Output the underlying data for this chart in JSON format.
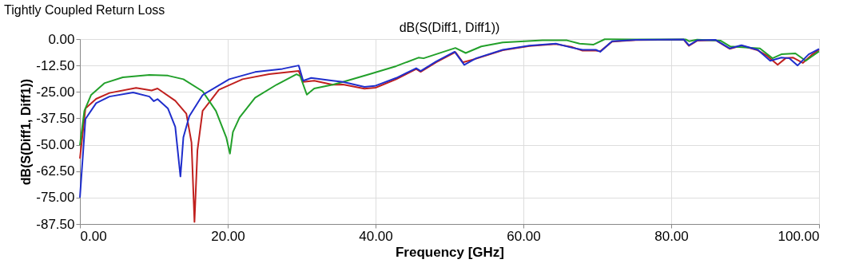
{
  "chart_data": {
    "type": "line",
    "title": "Tightly Coupled Return Loss",
    "subtitle": "dB(S(Diff1, Diff1))",
    "xlabel": "Frequency [GHz]",
    "ylabel": "dB(S(Diff1, Diff1))",
    "xlim": [
      0,
      100
    ],
    "ylim": [
      -87.5,
      0
    ],
    "xticks": [
      {
        "value": 0,
        "label": "0.00"
      },
      {
        "value": 20,
        "label": "20.00"
      },
      {
        "value": 40,
        "label": "40.00"
      },
      {
        "value": 60,
        "label": "60.00"
      },
      {
        "value": 80,
        "label": "80.00"
      },
      {
        "value": 100,
        "label": "100.00"
      }
    ],
    "yticks": [
      {
        "value": 0,
        "label": "0.00"
      },
      {
        "value": -12.5,
        "label": "-12.50"
      },
      {
        "value": -25,
        "label": "-25.00"
      },
      {
        "value": -37.5,
        "label": "-37.50"
      },
      {
        "value": -50,
        "label": "-50.00"
      },
      {
        "value": -62.5,
        "label": "-62.50"
      },
      {
        "value": -75,
        "label": "-75.00"
      },
      {
        "value": -87.5,
        "label": "-87.50"
      }
    ],
    "grid": true,
    "legend": false,
    "marker": "none",
    "line_style": "solid",
    "series": [
      {
        "color": "#c0201e",
        "x": [
          0,
          0.75,
          2.2,
          4,
          7.6,
          9.7,
          10.5,
          12.9,
          14.4,
          15.1,
          15.5,
          15.9,
          16.6,
          18.8,
          22,
          25.6,
          29.6,
          30.2,
          31.7,
          34.2,
          35.6,
          38.5,
          40,
          42.8,
          45.5,
          46.1,
          48.2,
          50.8,
          51.8,
          53.6,
          57.2,
          60.8,
          64.4,
          66.6,
          68,
          69.8,
          70.4,
          72,
          75.2,
          81.7,
          82.4,
          83.5,
          86,
          87.9,
          89.5,
          91.7,
          93,
          94.4,
          95.5,
          96.5,
          97.8,
          99,
          100
        ],
        "values": [
          -56.5,
          -32.8,
          -28.3,
          -25.5,
          -23.1,
          -24.3,
          -23.4,
          -29.2,
          -35.3,
          -49,
          -86.5,
          -52.7,
          -34,
          -24,
          -19,
          -16.6,
          -15.1,
          -20.3,
          -19.7,
          -21.6,
          -21.5,
          -23.5,
          -23,
          -19,
          -14.2,
          -15.5,
          -11,
          -6.2,
          -11,
          -9.3,
          -5.3,
          -3.3,
          -2.4,
          -3.8,
          -5.5,
          -5.5,
          -5.8,
          -1.2,
          -0.5,
          -0.3,
          -3.2,
          -0.8,
          -0.5,
          -4.6,
          -3.1,
          -5.3,
          -8,
          -12.2,
          -9,
          -8.8,
          -11.3,
          -7.5,
          -5
        ]
      },
      {
        "color": "#22a02a",
        "x": [
          0,
          0.6,
          1.5,
          3.3,
          5.8,
          9.4,
          11.9,
          14,
          16.6,
          18.4,
          19.8,
          20.3,
          20.7,
          21.6,
          23.7,
          26.6,
          29.3,
          29.8,
          30.7,
          31.7,
          34.2,
          35.6,
          39.2,
          42.8,
          45.8,
          46.5,
          50.8,
          52.2,
          54.3,
          57.2,
          62.6,
          65.9,
          67.6,
          69.5,
          71,
          75,
          82,
          82.4,
          83.5,
          86.7,
          88,
          92,
          93.7,
          94.9,
          96.8,
          98.2,
          100
        ],
        "values": [
          -50.2,
          -34,
          -26.5,
          -20.9,
          -18.1,
          -17,
          -17.3,
          -19,
          -24.7,
          -34,
          -46.5,
          -54.2,
          -44,
          -37.1,
          -27.8,
          -21.6,
          -16.6,
          -17.5,
          -26.3,
          -23.4,
          -21.6,
          -20.3,
          -16.6,
          -12.8,
          -8.8,
          -9.1,
          -4.2,
          -6.6,
          -3.5,
          -1.6,
          -0.6,
          -0.6,
          -2.2,
          -2.6,
          -0.1,
          -0.2,
          -0.2,
          -1,
          -0.3,
          -0.8,
          -3.5,
          -4.4,
          -9.1,
          -7.2,
          -6.8,
          -10.3,
          -5.8
        ]
      },
      {
        "color": "#1f2ecc",
        "x": [
          0,
          0.75,
          2.2,
          4,
          7.2,
          9.4,
          10,
          10.5,
          11.9,
          12.9,
          13.6,
          14,
          14.8,
          16.6,
          20.2,
          23.7,
          27.4,
          29.6,
          30.2,
          31.3,
          34.2,
          35.6,
          38.5,
          39.9,
          42.8,
          45.5,
          46.1,
          48.2,
          50.7,
          52,
          53.6,
          57.2,
          60.8,
          64.4,
          66.6,
          68,
          69.8,
          70.4,
          72,
          75.2,
          81.7,
          82.4,
          83.5,
          86,
          87.9,
          89.5,
          91.7,
          93.4,
          94.9,
          96,
          97.1,
          98.6,
          100
        ],
        "values": [
          -75,
          -37.8,
          -30.3,
          -27.2,
          -25.3,
          -27.2,
          -29.4,
          -28.4,
          -32.8,
          -41.5,
          -65,
          -46.5,
          -36.5,
          -26.5,
          -19,
          -15.6,
          -14.1,
          -12.5,
          -19.7,
          -18.4,
          -19.7,
          -20.3,
          -22.6,
          -22.2,
          -18.4,
          -13.8,
          -15.1,
          -10.6,
          -6,
          -12.2,
          -9.1,
          -5.1,
          -3.1,
          -2.2,
          -4.1,
          -5.1,
          -5.1,
          -6,
          -1,
          -0.4,
          -0.2,
          -3,
          -0.6,
          -0.4,
          -4.4,
          -2.9,
          -5.1,
          -10.3,
          -8.8,
          -9.1,
          -12.5,
          -7.2,
          -4.7
        ]
      }
    ]
  }
}
